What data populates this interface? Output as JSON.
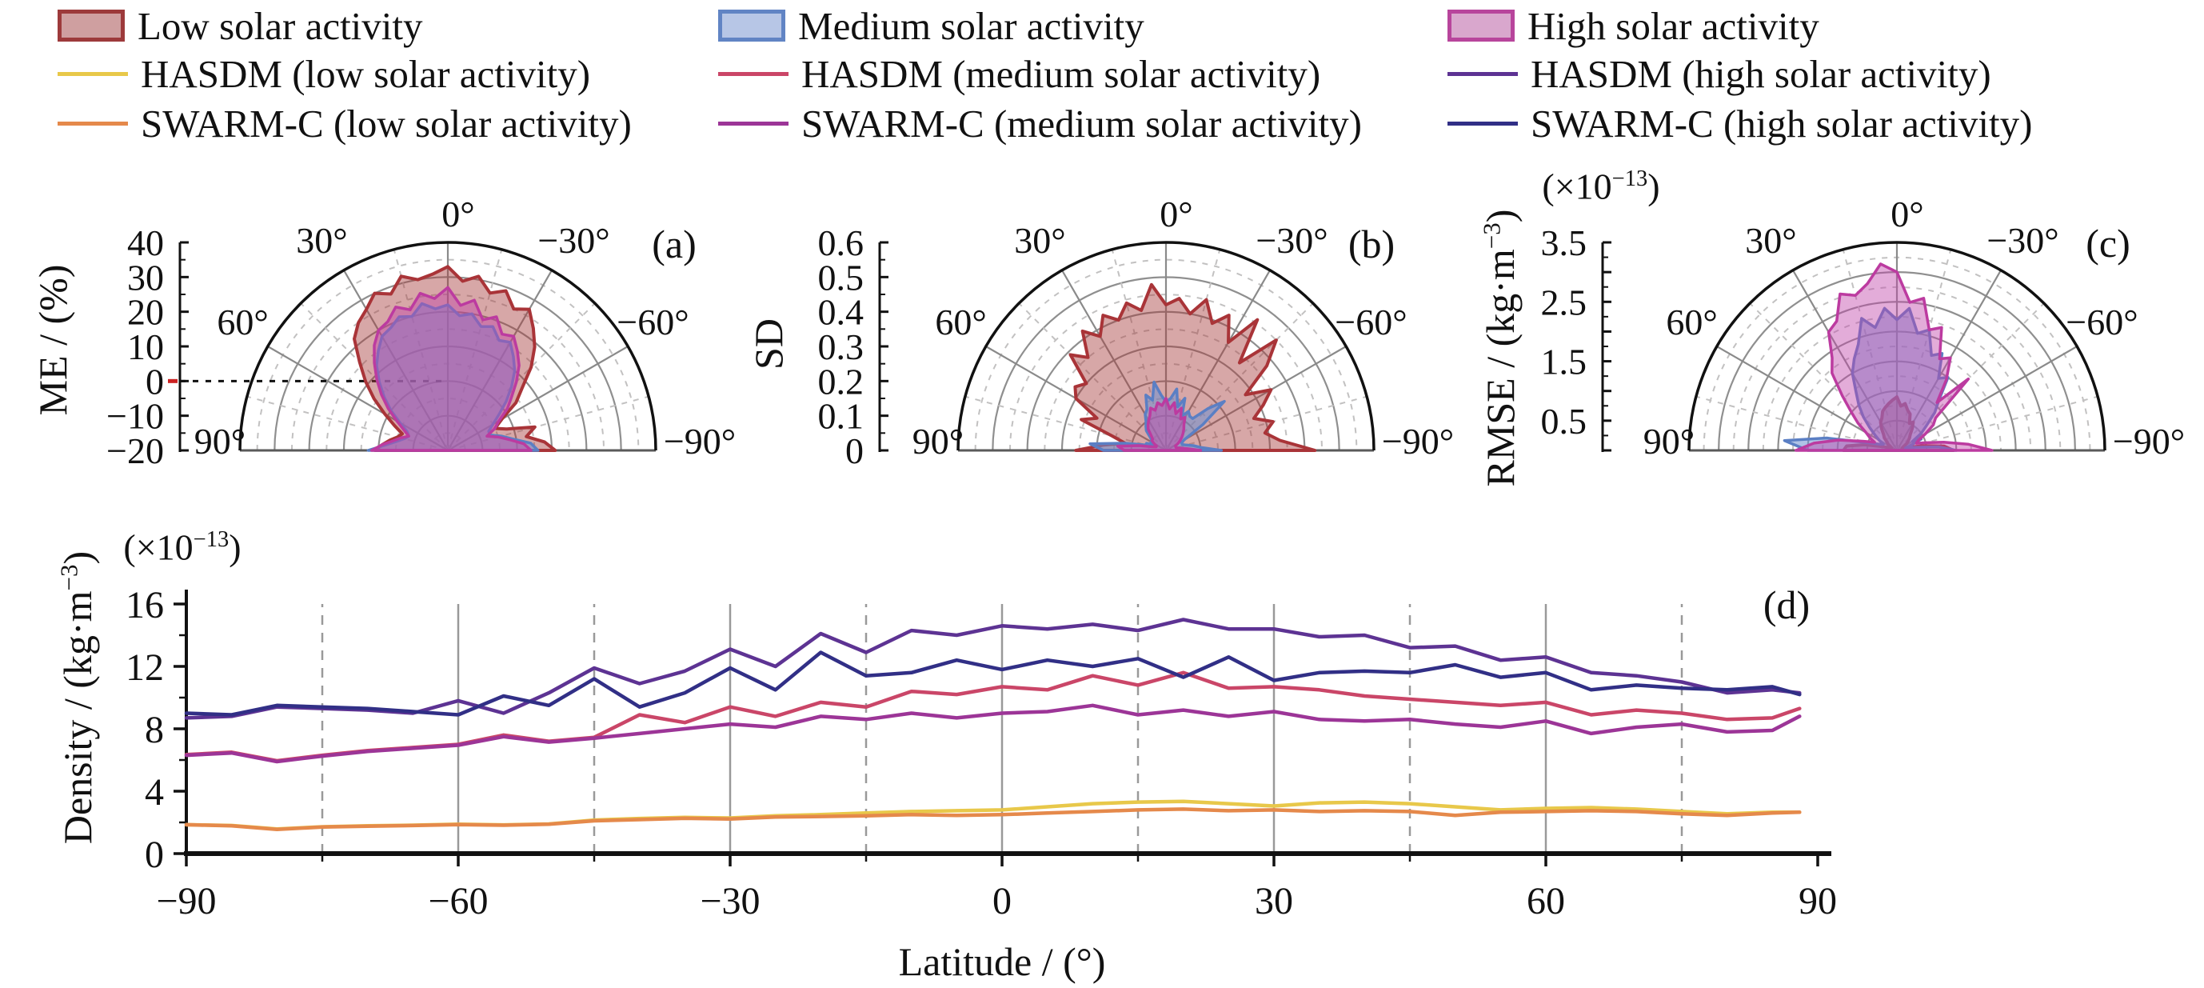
{
  "legend": {
    "items": [
      {
        "type": "patch",
        "label": "Low solar activity",
        "fill": "#cf9fa0",
        "stroke": "#9d3a3b"
      },
      {
        "type": "patch",
        "label": "Medium solar activity",
        "fill": "#b7c6e6",
        "stroke": "#6184c4"
      },
      {
        "type": "patch",
        "label": "High solar activity",
        "fill": "#d9a7cd",
        "stroke": "#b8459c"
      },
      {
        "type": "line",
        "label": "HASDM (low solar activity)",
        "stroke": "#e8c84a"
      },
      {
        "type": "line",
        "label": "HASDM (medium solar activity)",
        "stroke": "#ca4668"
      },
      {
        "type": "line",
        "label": "HASDM (high solar activity)",
        "stroke": "#5d3393"
      },
      {
        "type": "line",
        "label": "SWARM-C (low solar activity)",
        "stroke": "#e5894b"
      },
      {
        "type": "line",
        "label": "SWARM-C (medium solar activity)",
        "stroke": "#9c3597"
      },
      {
        "type": "line",
        "label": "SWARM-C (high solar activity)",
        "stroke": "#312f86"
      }
    ]
  },
  "chart_data": [
    {
      "id": "a",
      "type": "polar_area",
      "letter": "(a)",
      "axis_label": "ME / (%)",
      "rmin": -20,
      "rmax": 40,
      "solid_step": 10,
      "dash_step": 5,
      "zero_reference_line": 0,
      "rtick_labels": [
        [
          40,
          "40"
        ],
        [
          30,
          "30"
        ],
        [
          20,
          "20"
        ],
        [
          10,
          "10"
        ],
        [
          0,
          "0"
        ],
        [
          -10,
          "−10"
        ],
        [
          -20,
          "−20"
        ]
      ],
      "theta_labels": [
        [
          0,
          "0°"
        ],
        [
          30,
          "30°"
        ],
        [
          -30,
          "−30°"
        ],
        [
          60,
          "60°"
        ],
        [
          -60,
          "−60°"
        ],
        [
          90,
          "90°"
        ],
        [
          -90,
          "−90°"
        ]
      ],
      "theta_start": -90,
      "theta_step_deg": 5,
      "series": [
        {
          "name": "Low solar activity",
          "stroke": "#a93438",
          "fill": "rgba(166,60,60,0.45)",
          "width": 4,
          "values": [
            11,
            8,
            3,
            6,
            -2,
            -5,
            -2,
            4,
            8,
            14,
            19,
            23,
            27,
            25,
            29,
            27,
            31,
            29,
            33,
            31,
            30,
            32,
            28,
            30,
            27,
            25,
            22,
            16,
            11,
            6,
            1,
            -3,
            -6,
            -5,
            -3,
            -1,
            1
          ]
        },
        {
          "name": "Medium solar activity",
          "stroke": "#5b7fc4",
          "fill": "rgba(110,145,210,0.55)",
          "width": 3.5,
          "values": [
            6,
            4,
            -1,
            -4,
            -7,
            -7,
            -5,
            -2,
            2,
            6,
            10,
            13,
            16,
            15,
            18,
            17,
            20,
            19,
            22,
            21,
            23,
            20,
            21,
            19,
            18,
            15,
            12,
            8,
            4,
            0,
            -4,
            -7,
            -8,
            -7,
            -5,
            -2,
            3
          ]
        },
        {
          "name": "High solar activity",
          "stroke": "#bc3ba0",
          "fill": "rgba(192,72,170,0.45)",
          "width": 3.5,
          "values": [
            4,
            2,
            -2,
            -5,
            -8,
            -5,
            -3,
            1,
            4,
            8,
            12,
            15,
            18,
            17,
            21,
            19,
            24,
            22,
            27,
            24,
            26,
            22,
            24,
            21,
            20,
            17,
            13,
            9,
            5,
            1,
            -3,
            -6,
            -8,
            -6,
            -4,
            -1,
            2
          ]
        }
      ]
    },
    {
      "id": "b",
      "type": "polar_area",
      "letter": "(b)",
      "axis_label": "SD",
      "rmin": 0,
      "rmax": 0.6,
      "solid_step": 0.1,
      "dash_step": 0.05,
      "rtick_labels": [
        [
          0.6,
          "0.6"
        ],
        [
          0.5,
          "0.5"
        ],
        [
          0.4,
          "0.4"
        ],
        [
          0.3,
          "0.3"
        ],
        [
          0.2,
          "0.2"
        ],
        [
          0.1,
          "0.1"
        ],
        [
          0,
          "0"
        ]
      ],
      "theta_labels": [
        [
          0,
          "0°"
        ],
        [
          30,
          "30°"
        ],
        [
          -30,
          "−30°"
        ],
        [
          60,
          "60°"
        ],
        [
          -60,
          "−60°"
        ],
        [
          90,
          "90°"
        ],
        [
          -90,
          "−90°"
        ]
      ],
      "theta_start": -90,
      "theta_step_deg": 5,
      "series": [
        {
          "name": "Low solar activity",
          "stroke": "#a93438",
          "fill": "rgba(166,60,60,0.45)",
          "width": 4,
          "values": [
            0.43,
            0.33,
            0.29,
            0.32,
            0.27,
            0.31,
            0.35,
            0.28,
            0.38,
            0.45,
            0.33,
            0.46,
            0.36,
            0.43,
            0.39,
            0.45,
            0.4,
            0.44,
            0.42,
            0.48,
            0.41,
            0.44,
            0.4,
            0.43,
            0.38,
            0.42,
            0.35,
            0.39,
            0.3,
            0.32,
            0.3,
            0.22,
            0.26,
            0.16,
            0.12,
            0.18,
            0.26
          ]
        },
        {
          "name": "Medium solar activity",
          "stroke": "#5b7fc4",
          "fill": "rgba(110,145,210,0.55)",
          "width": 3.5,
          "values": [
            0.16,
            0.1,
            0.08,
            0.06,
            0.05,
            0.05,
            0.06,
            0.13,
            0.22,
            0.17,
            0.12,
            0.12,
            0.13,
            0.11,
            0.16,
            0.13,
            0.18,
            0.15,
            0.14,
            0.16,
            0.2,
            0.15,
            0.17,
            0.13,
            0.12,
            0.1,
            0.09,
            0.08,
            0.06,
            0.05,
            0.05,
            0.04,
            0.06,
            0.06,
            0.12,
            0.22,
            0.18
          ]
        },
        {
          "name": "High solar activity",
          "stroke": "#bc3ba0",
          "fill": "rgba(192,72,170,0.45)",
          "width": 3.5,
          "values": [
            0.1,
            0.06,
            0.04,
            0.03,
            0.03,
            0.03,
            0.04,
            0.05,
            0.06,
            0.07,
            0.08,
            0.09,
            0.11,
            0.1,
            0.13,
            0.11,
            0.14,
            0.12,
            0.15,
            0.13,
            0.14,
            0.12,
            0.13,
            0.11,
            0.1,
            0.09,
            0.08,
            0.06,
            0.05,
            0.05,
            0.04,
            0.03,
            0.03,
            0.04,
            0.08,
            0.14,
            0.12
          ]
        }
      ]
    },
    {
      "id": "c",
      "type": "polar_area",
      "letter": "(c)",
      "axis_label_parts": {
        "pre": "RMSE / (kg·m",
        "sup": "−3",
        "post": ")"
      },
      "scale_parts": {
        "pre": "(×10",
        "sup": "−13",
        "post": ")"
      },
      "rmin": 0,
      "rmax": 3.5,
      "solid_step": 0.5,
      "dash_step": 0.25,
      "rtick_labels": [
        [
          3.5,
          "3.5"
        ],
        [
          2.5,
          "2.5"
        ],
        [
          1.5,
          "1.5"
        ],
        [
          0.5,
          "0.5"
        ]
      ],
      "theta_labels": [
        [
          0,
          "0°"
        ],
        [
          30,
          "30°"
        ],
        [
          -30,
          "−30°"
        ],
        [
          60,
          "60°"
        ],
        [
          -60,
          "−60°"
        ],
        [
          90,
          "90°"
        ],
        [
          -90,
          "−90°"
        ]
      ],
      "theta_start": -90,
      "theta_step_deg": 5,
      "series": [
        {
          "name": "Low solar activity",
          "stroke": "#a93438",
          "fill": "rgba(166,60,60,0.45)",
          "width": 4,
          "values": [
            0.95,
            0.8,
            0.45,
            0.2,
            0.12,
            0.1,
            0.13,
            0.2,
            0.25,
            0.3,
            0.35,
            0.45,
            0.55,
            0.5,
            0.65,
            0.7,
            0.8,
            0.75,
            0.9,
            0.85,
            0.8,
            0.75,
            0.7,
            0.6,
            0.55,
            0.45,
            0.35,
            0.3,
            0.22,
            0.18,
            0.12,
            0.1,
            0.12,
            0.25,
            0.55,
            0.85,
            0.9
          ]
        },
        {
          "name": "Medium solar activity",
          "stroke": "#5b7fc4",
          "fill": "rgba(110,145,210,0.55)",
          "width": 3.5,
          "values": [
            1.0,
            0.7,
            0.3,
            0.15,
            0.25,
            0.45,
            0.3,
            0.5,
            0.65,
            0.9,
            1.1,
            1.5,
            1.4,
            1.8,
            1.7,
            2.1,
            2.0,
            2.4,
            2.2,
            2.4,
            2.1,
            2.3,
            1.9,
            1.7,
            1.5,
            1.2,
            1.0,
            0.8,
            0.6,
            0.45,
            0.35,
            0.25,
            0.3,
            0.5,
            1.2,
            1.9,
            1.5
          ]
        },
        {
          "name": "High solar activity",
          "stroke": "#bc3ba0",
          "fill": "rgba(192,72,170,0.45)",
          "width": 3.5,
          "values": [
            1.6,
            1.2,
            0.8,
            0.5,
            0.35,
            0.4,
            0.55,
            0.75,
            0.85,
            1.7,
            1.05,
            1.45,
            1.8,
            1.7,
            2.2,
            2.1,
            2.6,
            2.5,
            3.0,
            3.15,
            2.85,
            2.7,
            2.8,
            2.4,
            2.3,
            1.9,
            1.7,
            1.3,
            1.0,
            0.8,
            0.6,
            0.5,
            0.4,
            0.6,
            1.0,
            1.4,
            1.7
          ]
        }
      ]
    },
    {
      "id": "d",
      "type": "line",
      "letter": "(d)",
      "xlabel": "Latitude / (°)",
      "ylabel_parts": {
        "pre": "Density / (kg·m",
        "sup": "−3",
        "post": ")"
      },
      "scale_parts": {
        "pre": "(×10",
        "sup": "−13",
        "post": ")"
      },
      "xlim": [
        -90,
        90
      ],
      "ylim": [
        0,
        16
      ],
      "xticks": [
        [
          -90,
          "−90"
        ],
        [
          -60,
          "−60"
        ],
        [
          -30,
          "−30"
        ],
        [
          0,
          "0"
        ],
        [
          30,
          "30"
        ],
        [
          60,
          "60"
        ],
        [
          90,
          "90"
        ]
      ],
      "xminor_step": 15,
      "yticks": [
        [
          0,
          "0"
        ],
        [
          4,
          "4"
        ],
        [
          8,
          "8"
        ],
        [
          12,
          "12"
        ],
        [
          16,
          "16"
        ]
      ],
      "yminor_step": 2,
      "grid_solid": [
        -60,
        -30,
        0,
        30,
        60
      ],
      "grid_dashed": [
        -75,
        -45,
        -15,
        15,
        45,
        75
      ],
      "x": [
        -90,
        -85,
        -80,
        -75,
        -70,
        -65,
        -60,
        -55,
        -50,
        -45,
        -40,
        -35,
        -30,
        -25,
        -20,
        -15,
        -10,
        -5,
        0,
        5,
        10,
        15,
        20,
        25,
        30,
        35,
        40,
        45,
        50,
        55,
        60,
        65,
        70,
        75,
        80,
        85,
        88
      ],
      "series": [
        {
          "name": "HASDM (low solar activity)",
          "color": "#e8c84a",
          "y": [
            1.85,
            1.8,
            1.58,
            1.72,
            1.78,
            1.82,
            1.88,
            1.84,
            1.9,
            2.15,
            2.25,
            2.32,
            2.28,
            2.42,
            2.5,
            2.6,
            2.7,
            2.75,
            2.8,
            3.0,
            3.2,
            3.3,
            3.35,
            3.2,
            3.05,
            3.25,
            3.3,
            3.2,
            3.0,
            2.8,
            2.9,
            2.95,
            2.85,
            2.7,
            2.55,
            2.65,
            2.65
          ]
        },
        {
          "name": "SWARM-C (low solar activity)",
          "color": "#e5894b",
          "y": [
            1.85,
            1.78,
            1.55,
            1.7,
            1.76,
            1.8,
            1.86,
            1.82,
            1.88,
            2.1,
            2.18,
            2.26,
            2.22,
            2.35,
            2.38,
            2.42,
            2.5,
            2.45,
            2.5,
            2.6,
            2.7,
            2.8,
            2.85,
            2.75,
            2.8,
            2.7,
            2.75,
            2.7,
            2.45,
            2.65,
            2.7,
            2.75,
            2.7,
            2.55,
            2.45,
            2.6,
            2.65
          ]
        },
        {
          "name": "HASDM (medium solar activity)",
          "color": "#ca4668",
          "y": [
            6.35,
            6.5,
            5.95,
            6.3,
            6.6,
            6.8,
            7.0,
            7.6,
            7.2,
            7.45,
            8.9,
            8.4,
            9.4,
            8.8,
            9.7,
            9.4,
            10.4,
            10.2,
            10.7,
            10.5,
            11.4,
            10.8,
            11.6,
            10.6,
            10.7,
            10.5,
            10.1,
            9.9,
            9.7,
            9.5,
            9.7,
            8.9,
            9.2,
            9.0,
            8.6,
            8.7,
            9.3
          ]
        },
        {
          "name": "SWARM-C (medium solar activity)",
          "color": "#9c3597",
          "y": [
            6.3,
            6.45,
            5.9,
            6.25,
            6.55,
            6.75,
            6.95,
            7.5,
            7.15,
            7.4,
            7.7,
            8.0,
            8.3,
            8.1,
            8.8,
            8.6,
            9.0,
            8.7,
            9.0,
            9.1,
            9.5,
            8.9,
            9.2,
            8.8,
            9.1,
            8.6,
            8.5,
            8.6,
            8.3,
            8.1,
            8.5,
            7.7,
            8.1,
            8.3,
            7.8,
            7.9,
            8.8
          ]
        },
        {
          "name": "HASDM (high solar activity)",
          "color": "#5d3393",
          "y": [
            8.7,
            8.8,
            9.4,
            9.3,
            9.2,
            9.0,
            9.8,
            9.0,
            10.3,
            11.9,
            10.9,
            11.7,
            13.1,
            12.0,
            14.1,
            12.9,
            14.3,
            14.0,
            14.6,
            14.4,
            14.7,
            14.3,
            15.0,
            14.4,
            14.4,
            13.9,
            14.0,
            13.2,
            13.3,
            12.4,
            12.6,
            11.6,
            11.4,
            11.0,
            10.3,
            10.5,
            10.3
          ]
        },
        {
          "name": "SWARM-C (high solar activity)",
          "color": "#312f86",
          "y": [
            9.0,
            8.9,
            9.5,
            9.4,
            9.3,
            9.1,
            8.9,
            10.1,
            9.5,
            11.2,
            9.4,
            10.3,
            11.9,
            10.5,
            12.9,
            11.4,
            11.6,
            12.4,
            11.8,
            12.4,
            12.0,
            12.5,
            11.3,
            12.6,
            11.1,
            11.6,
            11.7,
            11.6,
            12.1,
            11.3,
            11.6,
            10.5,
            10.8,
            10.6,
            10.5,
            10.7,
            10.2
          ]
        }
      ]
    }
  ]
}
